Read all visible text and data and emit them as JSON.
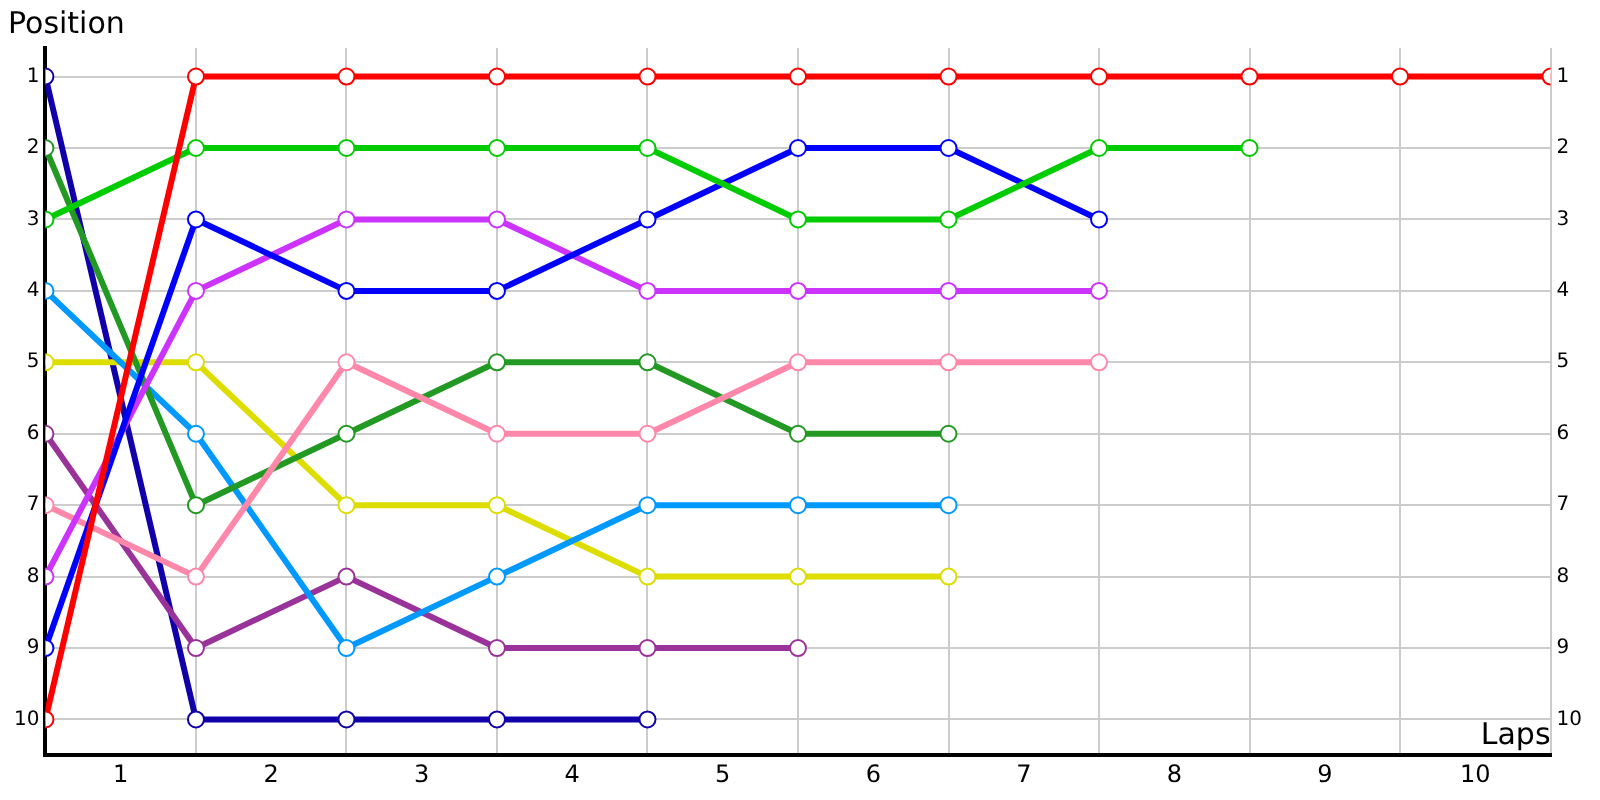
{
  "chart_data": {
    "type": "line",
    "xlabel": "Laps",
    "ylabel": "Position",
    "x": [
      0,
      1,
      2,
      3,
      4,
      5,
      6,
      7,
      8,
      9,
      10
    ],
    "xlim": [
      0,
      10
    ],
    "xticks": [
      {
        "value": 0,
        "label": null
      },
      {
        "value": 0.5,
        "label": "1"
      },
      {
        "value": 1,
        "label": null
      },
      {
        "value": 1.5,
        "label": "2"
      },
      {
        "value": 2,
        "label": null
      },
      {
        "value": 2.5,
        "label": "3"
      },
      {
        "value": 3,
        "label": null
      },
      {
        "value": 3.5,
        "label": "4"
      },
      {
        "value": 4,
        "label": null
      },
      {
        "value": 4.5,
        "label": "5"
      },
      {
        "value": 5,
        "label": null
      },
      {
        "value": 5.5,
        "label": "6"
      },
      {
        "value": 6,
        "label": null
      },
      {
        "value": 6.5,
        "label": "7"
      },
      {
        "value": 7,
        "label": null
      },
      {
        "value": 7.5,
        "label": "8"
      },
      {
        "value": 8,
        "label": null
      },
      {
        "value": 8.5,
        "label": "9"
      },
      {
        "value": 9,
        "label": null
      },
      {
        "value": 9.5,
        "label": "10"
      },
      {
        "value": 10,
        "label": null
      }
    ],
    "ylim": [
      10.5,
      0.6
    ],
    "yticks": [
      1,
      2,
      3,
      4,
      5,
      6,
      7,
      8,
      9,
      10
    ],
    "y2lim": [
      10.5,
      0.6
    ],
    "y2ticks": [
      1,
      2,
      3,
      4,
      5,
      6,
      7,
      8,
      9,
      10
    ],
    "grid": true,
    "legend": false,
    "marker": "circle",
    "line_style": "solid",
    "series": [
      {
        "color": "#ff0000",
        "values": [
          10,
          1,
          1,
          1,
          1,
          1,
          1,
          1,
          1,
          1,
          1
        ]
      },
      {
        "color": "#00cc00",
        "values": [
          3,
          2,
          2,
          2,
          2,
          3,
          3,
          2,
          2,
          null,
          null
        ]
      },
      {
        "color": "#0000ff",
        "values": [
          9,
          3,
          4,
          4,
          3,
          2,
          2,
          3,
          null,
          null,
          null
        ]
      },
      {
        "color": "#cc33ff",
        "values": [
          8,
          4,
          3,
          3,
          4,
          4,
          4,
          4,
          null,
          null,
          null
        ]
      },
      {
        "color": "#ff88aa",
        "values": [
          7,
          8,
          5,
          6,
          6,
          5,
          5,
          5,
          null,
          null,
          null
        ]
      },
      {
        "color": "#229922",
        "values": [
          2,
          7,
          6,
          5,
          5,
          6,
          6,
          null,
          null,
          null,
          null
        ]
      },
      {
        "color": "#0099ff",
        "values": [
          4,
          6,
          9,
          8,
          7,
          7,
          7,
          null,
          null,
          null,
          null
        ]
      },
      {
        "color": "#dddd00",
        "values": [
          5,
          5,
          7,
          7,
          8,
          8,
          8,
          null,
          null,
          null,
          null
        ]
      },
      {
        "color": "#993399",
        "values": [
          6,
          9,
          8,
          9,
          9,
          9,
          null,
          null,
          null,
          null,
          null
        ]
      },
      {
        "color": "#1100aa",
        "values": [
          1,
          10,
          10,
          10,
          10,
          null,
          null,
          null,
          null,
          null,
          null
        ]
      }
    ]
  }
}
